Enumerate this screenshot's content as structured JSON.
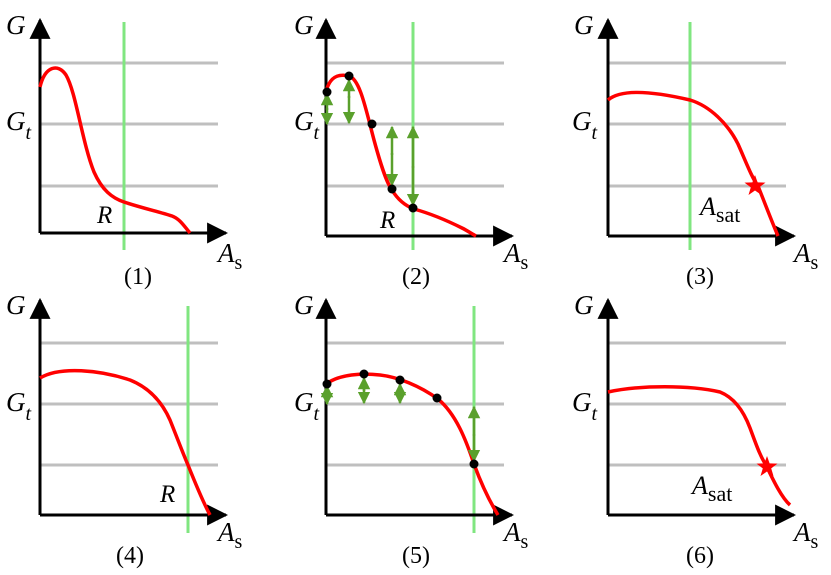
{
  "panels": [
    {
      "caption": "(1)",
      "axis": {
        "y": "G",
        "x": "A",
        "x_sub": "s"
      },
      "gt": {
        "main": "G",
        "sub": "t"
      },
      "labels": {
        "R": "R"
      }
    },
    {
      "caption": "(2)",
      "axis": {
        "y": "G",
        "x": "A",
        "x_sub": "s"
      },
      "gt": {
        "main": "G",
        "sub": "t"
      },
      "labels": {
        "R": "R"
      }
    },
    {
      "caption": "(3)",
      "axis": {
        "y": "G",
        "x": "A",
        "x_sub": "s"
      },
      "gt": {
        "main": "G",
        "sub": "t"
      },
      "labels": {
        "Asat_main": "A",
        "Asat_sub": "sat"
      }
    },
    {
      "caption": "(4)",
      "axis": {
        "y": "G",
        "x": "A",
        "x_sub": "s"
      },
      "gt": {
        "main": "G",
        "sub": "t"
      },
      "labels": {
        "R": "R"
      }
    },
    {
      "caption": "(5)",
      "axis": {
        "y": "G",
        "x": "A",
        "x_sub": "s"
      },
      "gt": {
        "main": "G",
        "sub": "t"
      }
    },
    {
      "caption": "(6)",
      "axis": {
        "y": "G",
        "x": "A",
        "x_sub": "s"
      },
      "gt": {
        "main": "G",
        "sub": "t"
      },
      "labels": {
        "Asat_main": "A",
        "Asat_sub": "sat"
      }
    }
  ],
  "colors": {
    "axis": "#000000",
    "gridline": "#bfbfbf",
    "curve": "#ff0000",
    "marker": "#80e680",
    "arrow": "#5aa02c",
    "point": "#000000",
    "star": "#ff0000"
  }
}
